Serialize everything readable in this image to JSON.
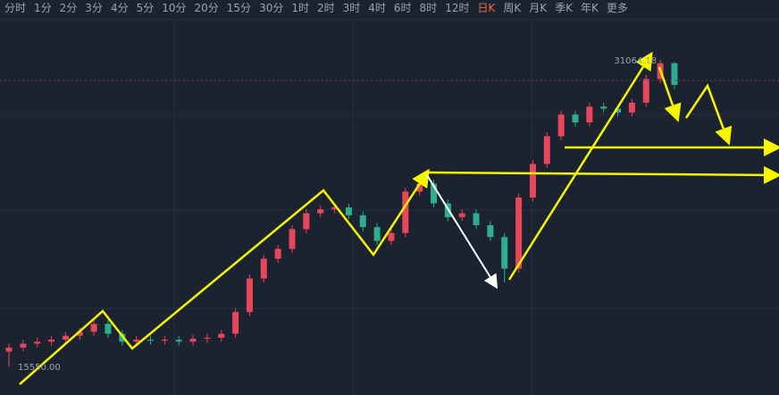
{
  "toolbar": {
    "tabs": [
      "分时",
      "1分",
      "2分",
      "3分",
      "4分",
      "5分",
      "10分",
      "20分",
      "15分",
      "30分",
      "1时",
      "2时",
      "3时",
      "4时",
      "6时",
      "8时",
      "12时",
      "日K",
      "周K",
      "月K",
      "季K",
      "年K",
      "更多"
    ],
    "active_index": 17
  },
  "chart_data": {
    "type": "candlestick",
    "up_color": "#e8465a",
    "down_color": "#2fae8e",
    "ylim": [
      14100,
      34100
    ],
    "open": [
      16300,
      16500,
      16700,
      16800,
      16900,
      17100,
      17300,
      17700,
      17200,
      16800,
      16900,
      16850,
      16900,
      16800,
      16950,
      17000,
      17200,
      18300,
      20000,
      21000,
      21500,
      22500,
      23300,
      23500,
      23600,
      23200,
      22600,
      21900,
      22300,
      24400,
      24800,
      23800,
      23100,
      23300,
      22700,
      22100,
      20500,
      24100,
      25800,
      27200,
      28300,
      27900,
      28700,
      28600,
      28400,
      28900,
      30100,
      30900
    ],
    "high": [
      16700,
      16900,
      17000,
      17100,
      17300,
      17500,
      17900,
      17900,
      17400,
      17100,
      17100,
      17100,
      17100,
      17150,
      17200,
      17400,
      18500,
      20200,
      21200,
      21700,
      22700,
      23500,
      23700,
      23800,
      23800,
      23400,
      22800,
      22500,
      24600,
      25000,
      25000,
      24000,
      23500,
      23500,
      22900,
      22300,
      24300,
      26000,
      27400,
      28500,
      28500,
      28900,
      28900,
      28800,
      29100,
      30300,
      31064.18,
      30950
    ],
    "low": [
      15550,
      16300,
      16500,
      16600,
      16700,
      16900,
      17100,
      17000,
      16600,
      16600,
      16650,
      16650,
      16600,
      16600,
      16750,
      16800,
      17000,
      18100,
      19800,
      20800,
      21300,
      22300,
      23100,
      23300,
      23000,
      22400,
      21700,
      21700,
      22100,
      24200,
      23600,
      22900,
      22900,
      22500,
      21900,
      19800,
      20300,
      23900,
      25600,
      27000,
      27700,
      27700,
      28400,
      28200,
      28200,
      28700,
      29900,
      29600
    ],
    "close": [
      16500,
      16700,
      16800,
      16900,
      17100,
      17300,
      17700,
      17200,
      16800,
      16900,
      16850,
      16900,
      16800,
      16950,
      17000,
      17200,
      18300,
      20000,
      21000,
      21500,
      22500,
      23300,
      23500,
      23600,
      23200,
      22600,
      21900,
      22300,
      24400,
      24800,
      23800,
      23100,
      23300,
      22700,
      22100,
      20500,
      24100,
      25800,
      27200,
      28300,
      27900,
      28700,
      28600,
      28400,
      28900,
      30100,
      30900,
      29800
    ],
    "max_label": 31064.18,
    "min_label": {
      "value": 15550,
      "label": "15550.00"
    },
    "price_line": 30030
  }
}
